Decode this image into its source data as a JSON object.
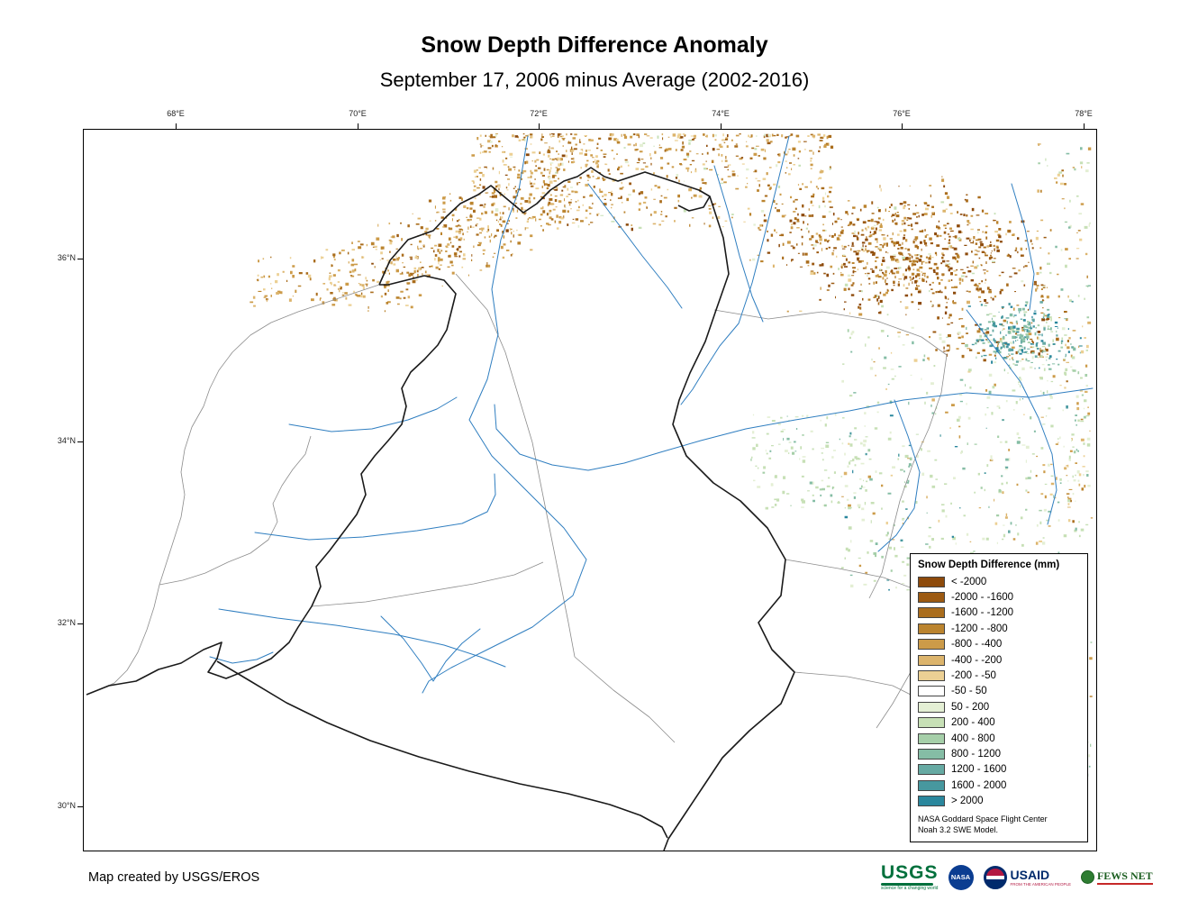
{
  "header": {
    "title": "Snow Depth Difference Anomaly",
    "subtitle": "September 17, 2006 minus Average (2002-2016)"
  },
  "map": {
    "lon_ticks": [
      "68°E",
      "70°E",
      "72°E",
      "74°E",
      "76°E",
      "78°E"
    ],
    "lat_ticks": [
      "36°N",
      "34°N",
      "32°N",
      "30°N"
    ]
  },
  "legend": {
    "title": "Snow Depth Difference (mm)",
    "items": [
      {
        "label": "< -2000",
        "color": "#8d4a0b"
      },
      {
        "label": "-2000 - -1600",
        "color": "#9c5a12"
      },
      {
        "label": "-1600 - -1200",
        "color": "#aa6d1d"
      },
      {
        "label": "-1200 - -800",
        "color": "#bb842f"
      },
      {
        "label": "-800 - -400",
        "color": "#cc9b49"
      },
      {
        "label": "-400 - -200",
        "color": "#dcb46c"
      },
      {
        "label": "-200 - -50",
        "color": "#ecd094"
      },
      {
        "label": "-50 - 50",
        "color": "#ffffff"
      },
      {
        "label": "50 - 200",
        "color": "#e4efd4"
      },
      {
        "label": "200 - 400",
        "color": "#c7e0b6"
      },
      {
        "label": "400 - 800",
        "color": "#a6cfa9"
      },
      {
        "label": "800 - 1200",
        "color": "#85bda5"
      },
      {
        "label": "1200 - 1600",
        "color": "#66aaa3"
      },
      {
        "label": "1600 - 2000",
        "color": "#47989f"
      },
      {
        "label": "> 2000",
        "color": "#2a879d"
      }
    ],
    "note_lines": [
      "NASA Goddard Space Flight Center",
      "Noah 3.2 SWE Model."
    ]
  },
  "footer": {
    "credit": "Map created by USGS/EROS"
  },
  "logos": {
    "usgs": {
      "name": "USGS",
      "tagline": "science for a changing world"
    },
    "nasa": {
      "name": "NASA"
    },
    "usaid": {
      "name": "USAID",
      "tagline": "FROM THE AMERICAN PEOPLE"
    },
    "fewsnet": {
      "name": "FEWS NET"
    }
  },
  "colors": {
    "river": "#2f7ec0",
    "boundary": "#1a1a1a",
    "subbasin": "#8c8c8c"
  }
}
